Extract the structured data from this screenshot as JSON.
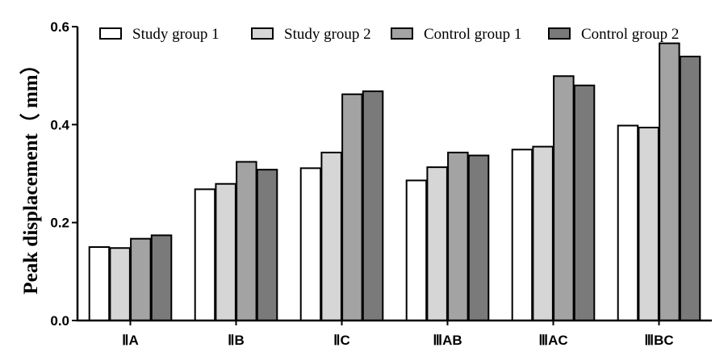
{
  "chart_data": {
    "type": "bar",
    "ylabel": "Peak displacement（ mm）",
    "xlabel": "",
    "ylim": [
      0,
      0.6
    ],
    "yticks": [
      "0.0",
      "0.2",
      "0.4",
      "0.6"
    ],
    "grid": false,
    "legend_position": "top",
    "categories": [
      "ⅡA",
      "ⅡB",
      "ⅡC",
      "ⅢAB",
      "ⅢAC",
      "ⅢBC"
    ],
    "series": [
      {
        "name": "Study group 1",
        "color": "#ffffff",
        "values": [
          0.15,
          0.268,
          0.311,
          0.286,
          0.349,
          0.398
        ]
      },
      {
        "name": "Study group 2",
        "color": "#d6d6d6",
        "values": [
          0.148,
          0.279,
          0.343,
          0.313,
          0.355,
          0.394
        ]
      },
      {
        "name": "Control group 1",
        "color": "#a3a3a3",
        "values": [
          0.167,
          0.324,
          0.462,
          0.343,
          0.499,
          0.566
        ]
      },
      {
        "name": "Control group 2",
        "color": "#7a7a7a",
        "values": [
          0.174,
          0.308,
          0.468,
          0.337,
          0.48,
          0.539
        ]
      }
    ]
  }
}
